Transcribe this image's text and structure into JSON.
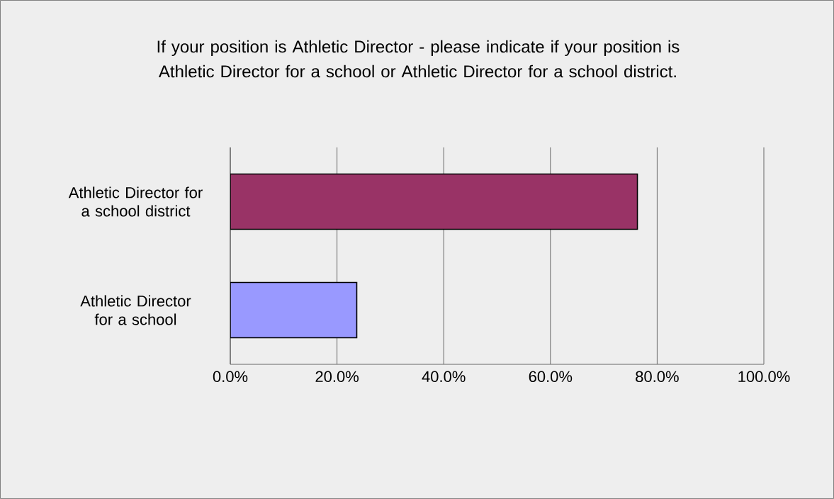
{
  "chart_data": {
    "type": "bar",
    "orientation": "horizontal",
    "title": "If your position is Athletic Director - please indicate if your position is Athletic Director for a school or Athletic Director for a school district.",
    "categories": [
      "Athletic Director for a school district",
      "Athletic Director for a school"
    ],
    "values": [
      76.3,
      23.7
    ],
    "colors": [
      "#993366",
      "#9999ff"
    ],
    "xlim": [
      0,
      100
    ],
    "xticks": [
      {
        "value": 0,
        "label": "0.0%"
      },
      {
        "value": 20,
        "label": "20.0%"
      },
      {
        "value": 40,
        "label": "40.0%"
      },
      {
        "value": 60,
        "label": "60.0%"
      },
      {
        "value": 80,
        "label": "80.0%"
      },
      {
        "value": 100,
        "label": "100.0%"
      }
    ],
    "grid": "x"
  }
}
